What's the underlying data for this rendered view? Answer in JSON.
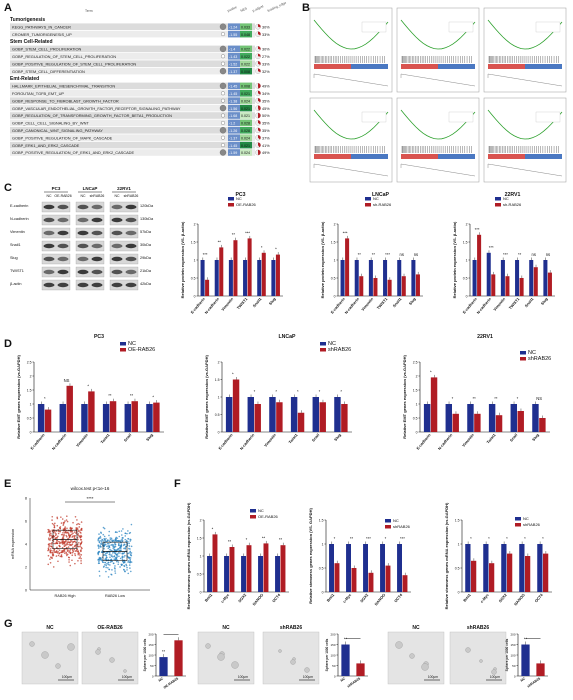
{
  "panels": {
    "A": {
      "letter": "A",
      "col_headers": [
        "Term",
        "pvalue",
        "NES",
        "p.adjust",
        "leading_edge"
      ],
      "groups": [
        {
          "name": "Tumorigenesis",
          "rows": [
            {
              "term": "KEGG_PATHWAYS_IN_CANCER",
              "nes": "-1.24",
              "padj": "0.033",
              "le": "30%"
            },
            {
              "term": "CROMER_TUMORIGENESIS_UP",
              "nes": "-1.55",
              "padj": "0.048",
              "le": "33%"
            }
          ]
        },
        {
          "name": "Stem Cell-Related",
          "rows": [
            {
              "term": "GOBP_STEM_CELL_PROLIFERATION",
              "nes": "-1.4",
              "padj": "0.022",
              "le": "30%"
            },
            {
              "term": "GOBP_REGULATION_OF_STEM_CELL_PROLIFERATION",
              "nes": "-1.43",
              "padj": "0.022",
              "le": "27%"
            },
            {
              "term": "GOBP_POSITIVE_REGULATION_OF_STEM_CELL_PROLIFERATION",
              "nes": "-1.52",
              "padj": "0.022",
              "le": "33%"
            },
            {
              "term": "GOBP_STEM_CELL_DIFFERENTIATION",
              "nes": "-1.37",
              "padj": "0.008",
              "le": "32%"
            }
          ]
        },
        {
          "name": "Emt-Related",
          "rows": [
            {
              "term": "HALLMARK_EPITHELIAL_MESENCHYMAL_TRANSITION",
              "nes": "-1.45",
              "padj": "0.008",
              "le": "49%"
            },
            {
              "term": "FOROUTAN_TGFB_EMT_UP",
              "nes": "-1.45",
              "padj": "0.021",
              "le": "34%"
            },
            {
              "term": "GOBP_RESPONSE_TO_FIBROBLAST_GROWTH_FACTOR",
              "nes": "-1.38",
              "padj": "0.024",
              "le": "35%"
            },
            {
              "term": "GOBP_VASCULAR_ENDOTHELIAL_GROWTH_FACTOR_RECEPTOR_SIGNALING_PATHWAY",
              "nes": "-1.56",
              "padj": "0.021",
              "le": "45%"
            },
            {
              "term": "GOBP_REGULATION_OF_TRANSFORMING_GROWTH_FACTOR_BETA1_PRODUCTION",
              "nes": "-1.68",
              "padj": "0.021",
              "le": "50%"
            },
            {
              "term": "GOBP_CELL_CELL_SIGNALING_BY_WNT",
              "nes": "-1.2",
              "padj": "0.028",
              "le": "35%"
            },
            {
              "term": "GOBP_CANONICAL_WNT_SIGNALING_PATHWAY",
              "nes": "-1.26",
              "padj": "0.028",
              "le": "35%"
            },
            {
              "term": "GOBP_POSITIVE_REGULATION_OF_MAPK_CASCADE",
              "nes": "-1.37",
              "padj": "0.024",
              "le": "37%"
            },
            {
              "term": "GOBP_ERK1_AND_ERK2_CASCADE",
              "nes": "-1.45",
              "padj": "0.021",
              "le": "41%"
            },
            {
              "term": "GOBP_POSITIVE_REGULATION_OF_ERK1_AND_ERK2_CASCADE",
              "nes": "-1.59",
              "padj": "0.024",
              "le": "49%"
            }
          ]
        }
      ]
    },
    "B": {
      "letter": "B"
    },
    "C": {
      "letter": "C",
      "blot_groups": [
        "PC3",
        "LNCaP",
        "22RV1"
      ],
      "blot_lanes": [
        "NC",
        "OE-RAB26",
        "NC",
        "shRAB26",
        "NC",
        "shRAB26"
      ],
      "blot_rows": [
        {
          "name": "E-cadherin",
          "kda": "120kDa"
        },
        {
          "name": "N-cadherin",
          "kda": "130kDa"
        },
        {
          "name": "Vimentin",
          "kda": "57kDa"
        },
        {
          "name": "Snail1",
          "kda": "30kDa"
        },
        {
          "name": "Slug",
          "kda": "29kDa"
        },
        {
          "name": "TWIST1",
          "kda": "21kDa"
        },
        {
          "name": "β-actin",
          "kda": "42kDa"
        }
      ]
    },
    "D": {
      "letter": "D"
    },
    "E": {
      "letter": "E",
      "title": "wilcox.test p<1e-16",
      "sig": "****",
      "ylabel": "mRNA expression",
      "categories": [
        "RAB26 High",
        "RAB26 Low"
      ],
      "yticks": [
        "0",
        "2",
        "4",
        "6",
        "8"
      ]
    },
    "F": {
      "letter": "F"
    },
    "G": {
      "letter": "G",
      "image_labels": [
        "NC",
        "OE-RAB26",
        "NC",
        "shRAB26",
        "NC",
        "shRAB26"
      ],
      "scale": "100μm",
      "ylabel": "Sphere per 1000 cells"
    }
  },
  "chart_data": [
    {
      "id": "C-PC3",
      "type": "bar",
      "title": "PC3",
      "ylabel": "Relative protein expression (VS. β-actin)",
      "categories": [
        "E-cadherin",
        "N-cadherin",
        "Vimentin",
        "TWIST1",
        "Snail1",
        "Slug"
      ],
      "series": [
        {
          "name": "NC",
          "values": [
            1.0,
            1.0,
            1.0,
            1.0,
            1.0,
            1.0
          ]
        },
        {
          "name": "OE-RAB26",
          "values": [
            0.45,
            1.35,
            1.55,
            1.6,
            1.2,
            1.15
          ]
        }
      ],
      "ylim": [
        0,
        2
      ],
      "yticks": [
        0,
        0.5,
        1,
        1.5,
        2
      ],
      "sig": [
        "***",
        "**",
        "**",
        "***",
        "*",
        "*"
      ],
      "colors": [
        "#1f2f8f",
        "#b01c24"
      ]
    },
    {
      "id": "C-LNCaP",
      "type": "bar",
      "title": "LNCaP",
      "ylabel": "Relative protein expression (VS. β-actin)",
      "categories": [
        "E-cadherin",
        "N-cadherin",
        "Vimentin",
        "TWIST1",
        "Snail1",
        "Slug"
      ],
      "series": [
        {
          "name": "NC",
          "values": [
            1.0,
            1.0,
            1.0,
            1.0,
            1.0,
            1.0
          ]
        },
        {
          "name": "sh-RAB26",
          "values": [
            1.6,
            0.55,
            0.5,
            0.45,
            0.55,
            0.6
          ]
        }
      ],
      "ylim": [
        0,
        2
      ],
      "yticks": [
        0,
        0.5,
        1,
        1.5,
        2
      ],
      "sig": [
        "***",
        "**",
        "**",
        "***",
        "ns",
        "ns"
      ],
      "colors": [
        "#1f2f8f",
        "#b01c24"
      ]
    },
    {
      "id": "C-22RV1",
      "type": "bar",
      "title": "22RV1",
      "ylabel": "Relative protein expression (VS. β-actin)",
      "categories": [
        "E-cadherin",
        "N-cadherin",
        "Vimentin",
        "TWIST1",
        "Snail1",
        "Slug"
      ],
      "series": [
        {
          "name": "NC",
          "values": [
            1.0,
            1.2,
            1.0,
            1.0,
            1.0,
            1.0
          ]
        },
        {
          "name": "sh-RAB26",
          "values": [
            1.7,
            0.6,
            0.55,
            0.5,
            0.8,
            0.65
          ]
        }
      ],
      "ylim": [
        0,
        2
      ],
      "yticks": [
        0,
        0.5,
        1,
        1.5,
        2
      ],
      "sig": [
        "***",
        "***",
        "***",
        "**",
        "ns",
        "ns"
      ],
      "colors": [
        "#1f2f8f",
        "#b01c24"
      ]
    },
    {
      "id": "D-PC3",
      "type": "bar",
      "title": "PC3",
      "ylabel": "Relative EMT genes expression (vs.GAPDH)",
      "categories": [
        "E-cadherin",
        "N-cadherin",
        "Vimentin",
        "Twist1",
        "Snail",
        "Slug"
      ],
      "series": [
        {
          "name": "NC",
          "values": [
            1.0,
            1.0,
            1.0,
            1.0,
            1.0,
            1.0
          ]
        },
        {
          "name": "OE-RAB26",
          "values": [
            0.8,
            1.65,
            1.45,
            1.1,
            1.1,
            1.05
          ]
        }
      ],
      "ylim": [
        0,
        2.5
      ],
      "yticks": [
        0,
        0.5,
        1,
        1.5,
        2,
        2.5
      ],
      "sig": [
        "*",
        "NS",
        "*",
        "**",
        "**",
        "*"
      ],
      "colors": [
        "#1f2f8f",
        "#b01c24"
      ]
    },
    {
      "id": "D-LNCaP",
      "type": "bar",
      "title": "LNCaP",
      "ylabel": "Relative EMT genes expression (vs.GAPDH)",
      "categories": [
        "E-cadherin",
        "N-cadherin",
        "Vimentin",
        "Twist1",
        "Snail",
        "Slug"
      ],
      "series": [
        {
          "name": "NC",
          "values": [
            1.0,
            1.0,
            1.0,
            1.0,
            1.0,
            1.0
          ]
        },
        {
          "name": "shRAB26",
          "values": [
            1.5,
            0.8,
            0.85,
            0.55,
            0.85,
            0.8
          ]
        }
      ],
      "ylim": [
        0,
        2
      ],
      "yticks": [
        0,
        0.5,
        1,
        1.5,
        2
      ],
      "sig": [
        "*",
        "*",
        "*",
        "*",
        "*",
        "*"
      ],
      "colors": [
        "#1f2f8f",
        "#b01c24"
      ]
    },
    {
      "id": "D-22RV1",
      "type": "bar",
      "title": "22RV1",
      "ylabel": "Relative EMT genes expression (vs.GAPDH)",
      "categories": [
        "E-cadherin",
        "N-cadherin",
        "Vimentin",
        "Twist1",
        "Snail",
        "Slug"
      ],
      "series": [
        {
          "name": "NC",
          "values": [
            1.0,
            1.0,
            1.0,
            1.0,
            1.0,
            1.0
          ]
        },
        {
          "name": "shRAB26",
          "values": [
            1.95,
            0.65,
            0.65,
            0.6,
            0.75,
            0.5
          ]
        }
      ],
      "ylim": [
        0,
        2.5
      ],
      "yticks": [
        0,
        0.5,
        1,
        1.5,
        2,
        2.5
      ],
      "sig": [
        "*",
        "*",
        "**",
        "**",
        "*",
        "NS"
      ],
      "colors": [
        "#1f2f8f",
        "#b01c24"
      ]
    },
    {
      "id": "F-1",
      "type": "bar",
      "ylabel": "Relative stemness genes mRNA expression (vs.GAPDH)",
      "categories": [
        "Bmi1",
        "c-Myc",
        "SOX2",
        "NANOG",
        "OCT4"
      ],
      "series": [
        {
          "name": "NC",
          "values": [
            1.0,
            1.0,
            1.0,
            1.0,
            1.0
          ]
        },
        {
          "name": "OE-RAB26",
          "values": [
            1.6,
            1.25,
            1.3,
            1.35,
            1.3
          ]
        }
      ],
      "ylim": [
        0,
        2
      ],
      "yticks": [
        0,
        0.5,
        1,
        1.5,
        2
      ],
      "sig": [
        "*",
        "**",
        "*",
        "**",
        "**"
      ],
      "colors": [
        "#1f2f8f",
        "#b01c24"
      ]
    },
    {
      "id": "F-2",
      "type": "bar",
      "ylabel": "Relative stemness genes expression (VS. GAPDH)",
      "categories": [
        "Bmi1",
        "c-Myc",
        "SOX2",
        "NANOG",
        "OCT4"
      ],
      "series": [
        {
          "name": "NC",
          "values": [
            1.0,
            1.0,
            1.0,
            1.0,
            1.0
          ]
        },
        {
          "name": "shRAB26",
          "values": [
            0.6,
            0.5,
            0.4,
            0.55,
            0.35
          ]
        }
      ],
      "ylim": [
        0,
        1.5
      ],
      "yticks": [
        0,
        0.5,
        1,
        1.5
      ],
      "sig": [
        "*",
        "**",
        "***",
        "*",
        "***"
      ],
      "colors": [
        "#1f2f8f",
        "#b01c24"
      ]
    },
    {
      "id": "F-3",
      "type": "bar",
      "ylabel": "Relative stemness genes mRNA expression (vs.GAPDH)",
      "categories": [
        "Bmi1",
        "c-Myc",
        "SOX2",
        "NANOG",
        "OCT4"
      ],
      "series": [
        {
          "name": "NC",
          "values": [
            1.0,
            1.0,
            1.0,
            1.0,
            1.0
          ]
        },
        {
          "name": "shRAB26",
          "values": [
            0.65,
            0.6,
            0.8,
            0.75,
            0.8
          ]
        }
      ],
      "ylim": [
        0,
        1.5
      ],
      "yticks": [
        0,
        0.5,
        1,
        1.5
      ],
      "sig": [
        "*",
        "*",
        "*",
        "*",
        "*"
      ],
      "colors": [
        "#1f2f8f",
        "#b01c24"
      ]
    },
    {
      "id": "G-1",
      "type": "bar",
      "ylabel": "Sphere per 1000 cells",
      "categories": [
        "NC",
        "OE-RAB26"
      ],
      "series": [
        {
          "name": "Sphere per 1000 cells",
          "values": [
            90,
            170
          ]
        }
      ],
      "ylim": [
        0,
        200
      ],
      "yticks": [
        0,
        50,
        100,
        150,
        200
      ],
      "sig": [
        "**"
      ],
      "colors": [
        "#1f2f8f",
        "#b01c24"
      ]
    },
    {
      "id": "G-2",
      "type": "bar",
      "ylabel": "Sphere per 1000 cells",
      "categories": [
        "NC",
        "shRAB26"
      ],
      "series": [
        {
          "name": "Sphere per 1000 cells",
          "values": [
            150,
            60
          ]
        }
      ],
      "ylim": [
        0,
        200
      ],
      "yticks": [
        0,
        50,
        100,
        150,
        200
      ],
      "sig": [
        "**"
      ],
      "colors": [
        "#1f2f8f",
        "#b01c24"
      ]
    },
    {
      "id": "G-3",
      "type": "bar",
      "ylabel": "Sphere per 1000 cells",
      "categories": [
        "NC",
        "shRAB26"
      ],
      "series": [
        {
          "name": "Sphere per 1000 cells",
          "values": [
            150,
            60
          ]
        }
      ],
      "ylim": [
        0,
        200
      ],
      "yticks": [
        0,
        50,
        100,
        150,
        200
      ],
      "sig": [
        "**"
      ],
      "colors": [
        "#1f2f8f",
        "#b01c24"
      ]
    }
  ]
}
